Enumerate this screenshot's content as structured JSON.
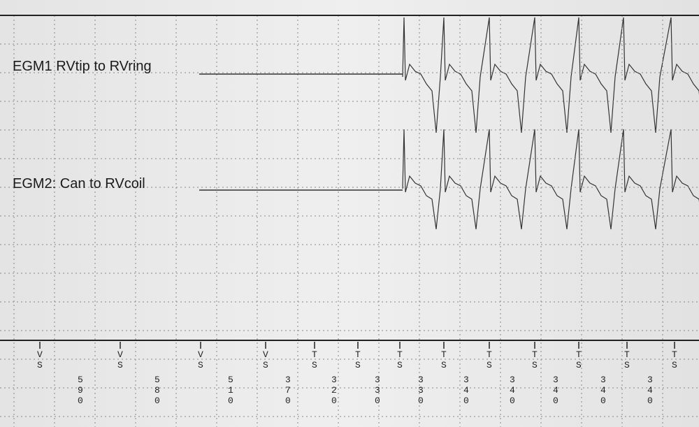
{
  "channels": [
    {
      "label": "EGM1 RVtip to RVring"
    },
    {
      "label": "EGM2: Can to RVcoil"
    }
  ],
  "markers": [
    "VS",
    "VS",
    "VS",
    "VS",
    "TS",
    "TS",
    "TS",
    "TS",
    "TS",
    "TS",
    "TS",
    "TS",
    "TS"
  ],
  "intervals": [
    "590",
    "580",
    "510",
    "370",
    "320",
    "330",
    "330",
    "340",
    "340",
    "340",
    "340",
    "340"
  ]
}
